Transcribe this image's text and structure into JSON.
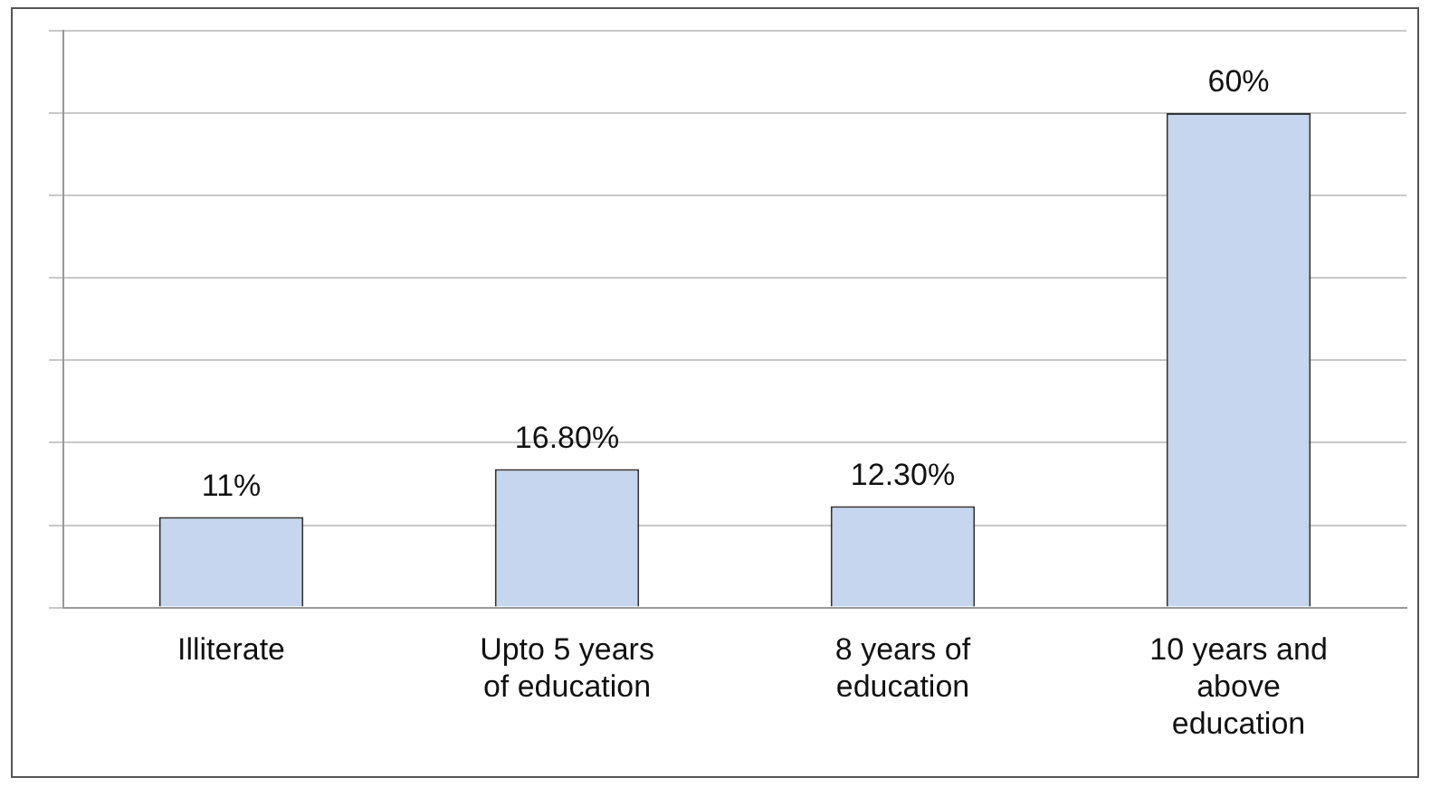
{
  "chart_data": {
    "type": "bar",
    "categories": [
      "Illiterate",
      "Upto 5 years of education",
      "8 years of education",
      "10 years and above education"
    ],
    "values": [
      11,
      16.8,
      12.3,
      60
    ],
    "value_labels": [
      "11%",
      "16.80%",
      "12.30%",
      "60%"
    ],
    "color": "#c6d6ef",
    "ylim": [
      0,
      70
    ],
    "tick_labels": "x",
    "grid": "y",
    "legend": false
  }
}
